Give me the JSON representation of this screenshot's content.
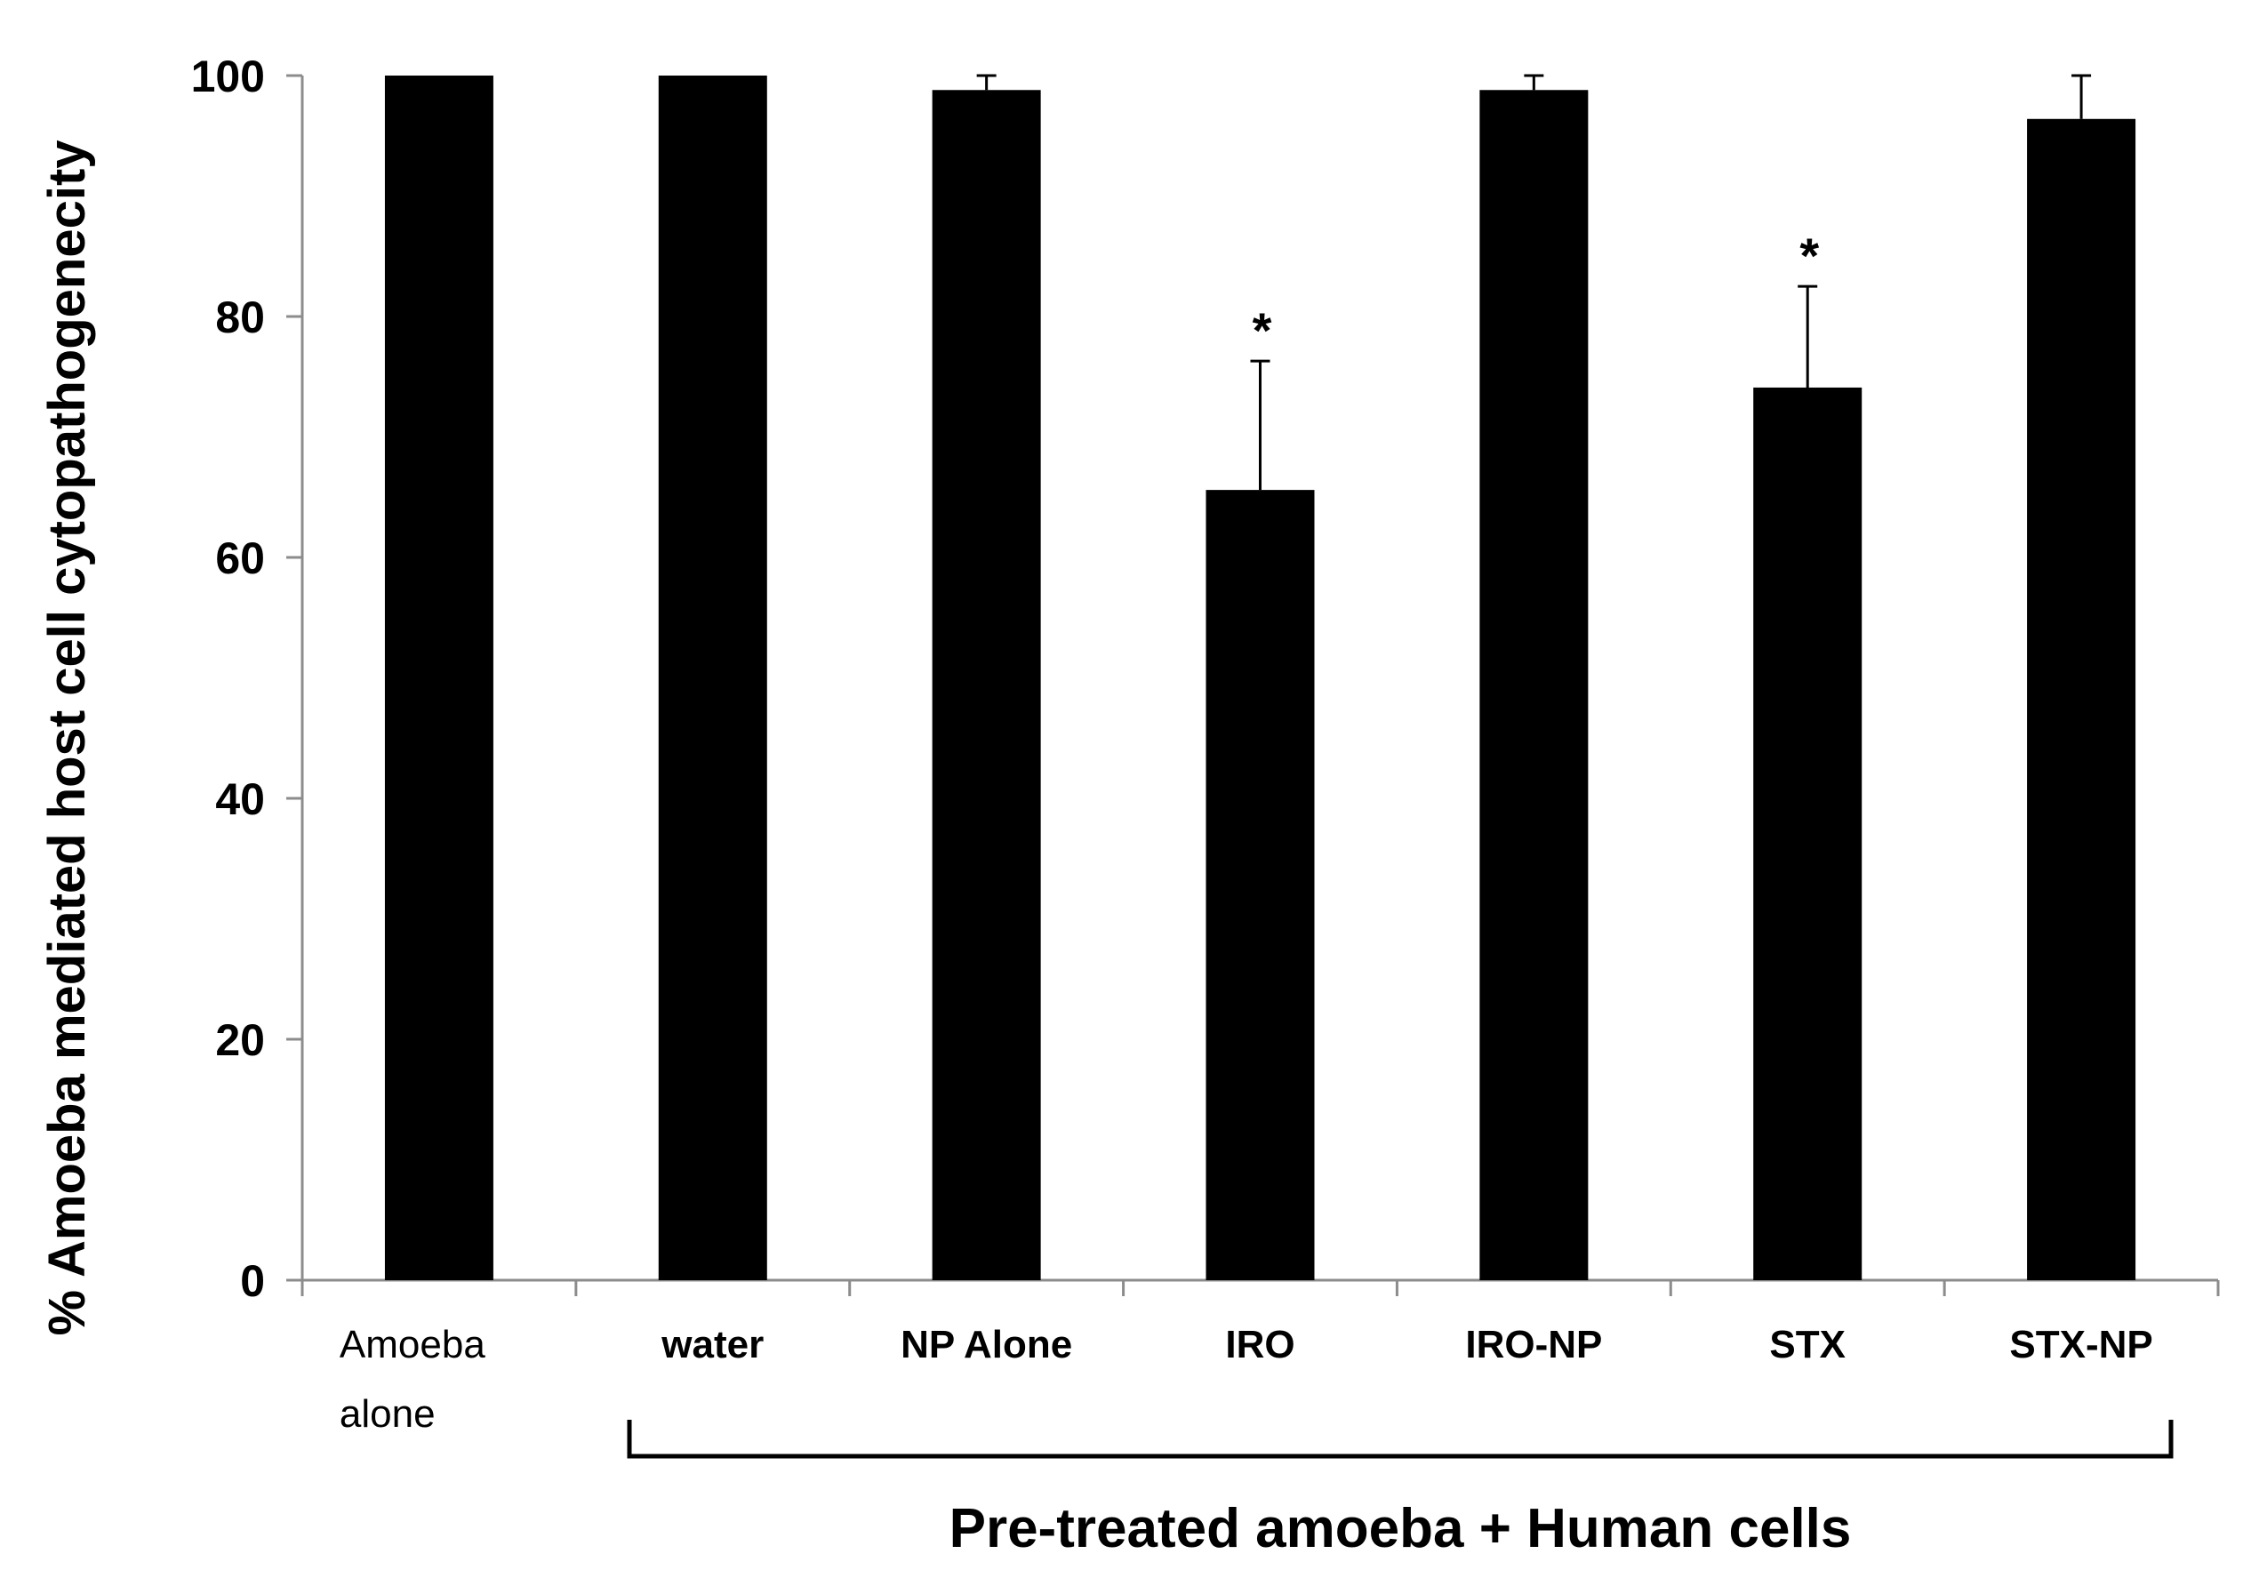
{
  "chart_data": {
    "type": "bar",
    "title": "",
    "xlabel": "",
    "ylabel": "% Amoeba mediated host cell cytopathogenecity",
    "ylim": [
      0,
      100
    ],
    "yticks": [
      0,
      20,
      40,
      60,
      80,
      100
    ],
    "grid": false,
    "categories": [
      {
        "lines": [
          "Amoeba",
          "alone"
        ],
        "bold": false
      },
      {
        "lines": [
          "water"
        ],
        "bold": true
      },
      {
        "lines": [
          "NP Alone"
        ],
        "bold": true
      },
      {
        "lines": [
          "IRO"
        ],
        "bold": true
      },
      {
        "lines": [
          "IRO-NP"
        ],
        "bold": true
      },
      {
        "lines": [
          "STX"
        ],
        "bold": true
      },
      {
        "lines": [
          "STX-NP"
        ],
        "bold": true
      }
    ],
    "values": [
      100,
      100,
      98.8,
      65.6,
      98.8,
      74.1,
      96.4
    ],
    "errors": [
      0.1,
      0.1,
      1.2,
      10.7,
      1.2,
      8.4,
      3.6
    ],
    "annotations": [
      "",
      "",
      "",
      "*",
      "",
      "*",
      ""
    ],
    "group_label": "Pre-treated amoeba + Human cells",
    "bar_color": "#000000",
    "axis_color": "#8c8c8c"
  }
}
